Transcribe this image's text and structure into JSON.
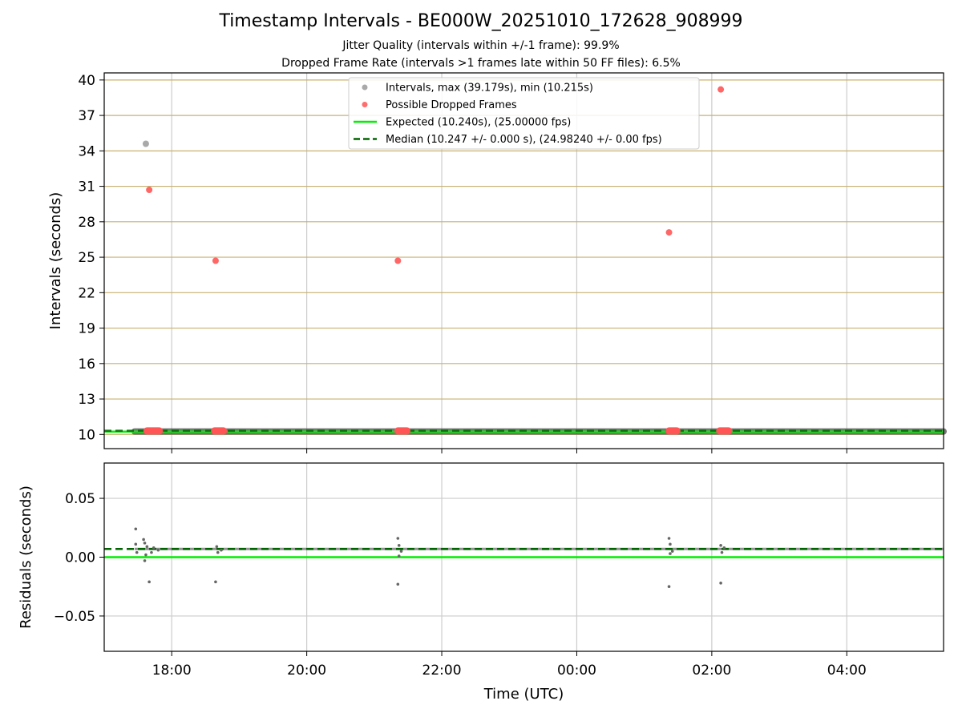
{
  "figure": {
    "title": "Timestamp Intervals - BE000W_20251010_172628_908999",
    "subtitle_1": "Jitter Quality (intervals within +/-1 frame): 99.9%",
    "subtitle_2": "Dropped Frame Rate (intervals >1 frames late within 50 FF files): 6.5%"
  },
  "colors": {
    "interval_points": "#9a9a9a",
    "dropped_points": "#ff5555",
    "expected_line": "#00ee00",
    "median_line": "#006400",
    "hgrid_top": "#c8b070",
    "grid": "#cccccc"
  },
  "chart_data": [
    {
      "type": "scatter",
      "panel": "intervals",
      "xlabel": "",
      "ylabel": "Intervals (seconds)",
      "x_start": "17:00",
      "x_end": "05:26",
      "x_tick_labels": [
        "18:00",
        "20:00",
        "22:00",
        "00:00",
        "02:00",
        "04:00"
      ],
      "ylim": [
        8.8,
        40.6
      ],
      "yticks": [
        10,
        13,
        16,
        19,
        22,
        25,
        28,
        31,
        34,
        37,
        40
      ],
      "grid": true,
      "legend_position": "upper center",
      "legend": [
        {
          "label": "Intervals, max (39.179s), min (10.215s)",
          "kind": "point",
          "color": "#9a9a9a"
        },
        {
          "label": "Possible Dropped Frames",
          "kind": "point",
          "color": "#ff5555"
        },
        {
          "label": "Expected (10.240s), (25.00000 fps)",
          "kind": "line",
          "color": "#00ee00"
        },
        {
          "label": "Median (10.247 +/- 0.000 s), (24.98240 +/- 0.00 fps)",
          "kind": "dashed",
          "color": "#006400"
        }
      ],
      "series": [
        {
          "name": "Intervals, max (39.179s), min (10.215s)",
          "points": [
            {
              "x": "17:37",
              "y": 34.6
            }
          ],
          "baseline": {
            "x_from": "17:27",
            "x_to": "05:26",
            "y": 10.25
          }
        },
        {
          "name": "Possible Dropped Frames",
          "points": [
            {
              "x": "17:40",
              "y": 30.7
            },
            {
              "x": "18:39",
              "y": 24.7
            },
            {
              "x": "21:21",
              "y": 24.7
            },
            {
              "x": "01:22",
              "y": 27.1
            },
            {
              "x": "02:08",
              "y": 39.2
            }
          ],
          "clusters": [
            {
              "x_from": "17:38",
              "x_to": "17:49",
              "y": 10.3
            },
            {
              "x_from": "18:38",
              "x_to": "18:46",
              "y": 10.3
            },
            {
              "x_from": "21:21",
              "x_to": "21:29",
              "y": 10.3
            },
            {
              "x_from": "01:22",
              "x_to": "01:29",
              "y": 10.3
            },
            {
              "x_from": "02:07",
              "x_to": "02:15",
              "y": 10.3
            }
          ]
        },
        {
          "name": "Expected (10.240s), (25.00000 fps)",
          "y": 10.24
        },
        {
          "name": "Median (10.247 +/- 0.000 s), (24.98240 +/- 0.00 fps)",
          "y": 10.247
        }
      ]
    },
    {
      "type": "scatter",
      "panel": "residuals",
      "xlabel": "Time (UTC)",
      "ylabel": "Residuals (seconds)",
      "x_start": "17:00",
      "x_end": "05:26",
      "x_tick_labels": [
        "18:00",
        "20:00",
        "22:00",
        "00:00",
        "02:00",
        "04:00"
      ],
      "ylim": [
        -0.08,
        0.08
      ],
      "ytick_labels": [
        "−0.05",
        "0.00",
        "0.05"
      ],
      "yticks": [
        -0.05,
        0,
        0.05
      ],
      "grid": true,
      "series": [
        {
          "name": "residuals",
          "points": [
            {
              "x": "17:28",
              "y": 0.024
            },
            {
              "x": "17:28",
              "y": 0.011
            },
            {
              "x": "17:29",
              "y": 0.004
            },
            {
              "x": "17:35",
              "y": 0.015
            },
            {
              "x": "17:36",
              "y": 0.012
            },
            {
              "x": "17:36",
              "y": -0.003
            },
            {
              "x": "17:37",
              "y": 0.002
            },
            {
              "x": "17:38",
              "y": 0.009
            },
            {
              "x": "17:40",
              "y": -0.021
            },
            {
              "x": "17:42",
              "y": 0.004
            },
            {
              "x": "17:44",
              "y": 0.008
            },
            {
              "x": "17:48",
              "y": 0.006
            },
            {
              "x": "18:39",
              "y": -0.021
            },
            {
              "x": "18:40",
              "y": 0.009
            },
            {
              "x": "18:41",
              "y": 0.004
            },
            {
              "x": "18:44",
              "y": 0.006
            },
            {
              "x": "21:21",
              "y": 0.016
            },
            {
              "x": "21:21",
              "y": -0.023
            },
            {
              "x": "21:22",
              "y": 0.01
            },
            {
              "x": "21:22",
              "y": 0.001
            },
            {
              "x": "21:24",
              "y": 0.005
            },
            {
              "x": "01:22",
              "y": 0.016
            },
            {
              "x": "01:22",
              "y": -0.025
            },
            {
              "x": "01:23",
              "y": 0.011
            },
            {
              "x": "01:23",
              "y": 0.003
            },
            {
              "x": "01:25",
              "y": 0.005
            },
            {
              "x": "02:08",
              "y": 0.01
            },
            {
              "x": "02:08",
              "y": -0.022
            },
            {
              "x": "02:09",
              "y": 0.004
            },
            {
              "x": "02:11",
              "y": 0.008
            }
          ],
          "baseline": {
            "x_from": "17:27",
            "x_to": "05:26",
            "y": 0.007
          }
        },
        {
          "name": "expected",
          "y": 0.0
        },
        {
          "name": "median",
          "y": 0.007
        }
      ]
    }
  ]
}
